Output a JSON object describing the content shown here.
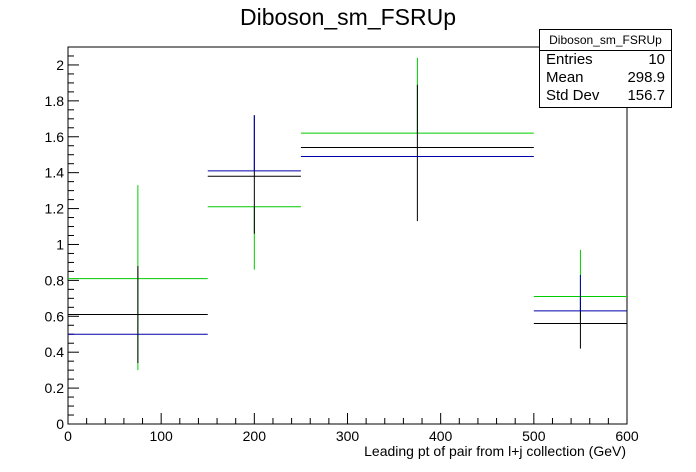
{
  "chart_data": {
    "type": "error-bar",
    "title": "Diboson_sm_FSRUp",
    "xlabel": "Leading pt of pair from l+j collection (GeV)",
    "ylabel": "",
    "xlim": [
      0,
      600
    ],
    "ylim": [
      0,
      2.1
    ],
    "xticks": [
      0,
      100,
      200,
      300,
      400,
      500,
      600
    ],
    "yticks": [
      0,
      0.2,
      0.4,
      0.6,
      0.8,
      1,
      1.2,
      1.4,
      1.6,
      1.8,
      2
    ],
    "xtick_labels": [
      "0",
      "100",
      "200",
      "300",
      "400",
      "500",
      "600"
    ],
    "ytick_labels": [
      "0",
      "0.2",
      "0.4",
      "0.6",
      "0.8",
      "1",
      "1.2",
      "1.4",
      "1.6",
      "1.8",
      "2"
    ],
    "bins": [
      [
        0,
        150
      ],
      [
        150,
        250
      ],
      [
        250,
        500
      ],
      [
        500,
        600
      ]
    ],
    "centers": [
      75,
      200,
      375,
      550
    ],
    "series": [
      {
        "color": "#00cc00",
        "values": [
          0.81,
          1.21,
          1.62,
          0.71
        ],
        "err_low": [
          0.51,
          0.35,
          0.0,
          0.13
        ],
        "err_high": [
          0.52,
          0.0,
          0.42,
          0.26
        ]
      },
      {
        "color": "#000000",
        "values": [
          0.61,
          1.38,
          1.54,
          0.56
        ],
        "err_low": [
          0.27,
          0.32,
          0.41,
          0.14
        ],
        "err_high": [
          0.27,
          0.34,
          0.35,
          0.15
        ]
      },
      {
        "color": "#0000aa",
        "values": [
          0.5,
          1.41,
          1.49,
          0.63
        ],
        "err_low": [
          0.0,
          0.0,
          0.0,
          0.0
        ],
        "err_high": [
          0.0,
          0.31,
          0.0,
          0.2
        ]
      }
    ],
    "grid": false,
    "legend": "none"
  },
  "stats": {
    "title": "Diboson_sm_FSRUp",
    "rows": [
      {
        "label": "Entries",
        "value": "10"
      },
      {
        "label": "Mean",
        "value": "298.9"
      },
      {
        "label": "Std Dev",
        "value": "156.7"
      }
    ]
  }
}
